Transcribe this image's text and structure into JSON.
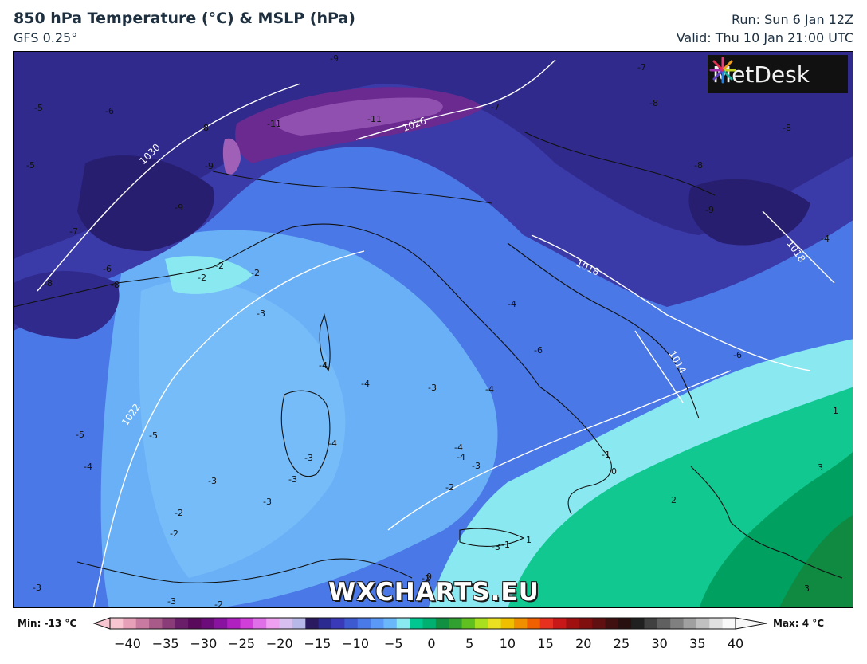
{
  "header": {
    "title": "850 hPa Temperature (°C) & MSLP (hPa)",
    "model": "GFS 0.25°",
    "run": "Run: Sun 6 Jan 12Z",
    "valid": "Valid: Thu 10 Jan 21:00 UTC"
  },
  "logo": {
    "text": "MetDesk"
  },
  "watermark": "WXCHARTS.EU",
  "colorbar": {
    "min_label": "Min: -13 °C",
    "max_label": "Max: 4 °C",
    "ticks": [
      "−40",
      "−35",
      "−30",
      "−25",
      "−20",
      "−15",
      "−10",
      "−5",
      "0",
      "5",
      "10",
      "15",
      "20",
      "25",
      "30",
      "35",
      "40"
    ],
    "colors": [
      "#f7c6d0",
      "#e6a0b8",
      "#c87aa0",
      "#a85a88",
      "#8a3c78",
      "#6a1e6a",
      "#5a0a5a",
      "#6c0c7a",
      "#8a12a0",
      "#b020c0",
      "#d040d8",
      "#e070e8",
      "#f0a0f0",
      "#d8c0f0",
      "#b8b8e8",
      "#2c1a60",
      "#2a2a90",
      "#3a3ab8",
      "#3e5ad0",
      "#4a7ae8",
      "#5a9af6",
      "#6ab8fa",
      "#8ae8f0",
      "#00c890",
      "#00b070",
      "#109040",
      "#30a030",
      "#60c020",
      "#a8e020",
      "#e8e020",
      "#f0c000",
      "#f09000",
      "#f06000",
      "#e83020",
      "#c81818",
      "#a01010",
      "#801010",
      "#601010",
      "#401010",
      "#281010",
      "#202020",
      "#404040",
      "#606060",
      "#808080",
      "#a0a0a0",
      "#c0c0c0",
      "#e0e0e0",
      "#f8f8f8"
    ]
  },
  "map": {
    "temperature_labels": [
      "-5",
      "-6",
      "-9",
      "-5",
      "-7",
      "-6",
      "-8",
      "-11",
      "-11",
      "-7",
      "-9",
      "-9",
      "-7",
      "-8",
      "-8",
      "-8",
      "-9",
      "-8",
      "-4",
      "-6",
      "-8",
      "-2",
      "-2",
      "-2",
      "-3",
      "-4",
      "-3",
      "-4",
      "-4",
      "-3",
      "-4",
      "-4",
      "-4",
      "-6",
      "-5",
      "-5",
      "-4",
      "-4",
      "-3",
      "-3",
      "-3",
      "-3",
      "-2",
      "-2",
      "-2",
      "-3",
      "-3",
      "-2",
      "-3",
      "-2",
      "-1",
      "0",
      "-1",
      "1",
      "2",
      "3",
      "1",
      "3",
      "0"
    ],
    "isobar_labels": [
      "1030",
      "1026",
      "1022",
      "1018",
      "1018",
      "1014"
    ]
  }
}
